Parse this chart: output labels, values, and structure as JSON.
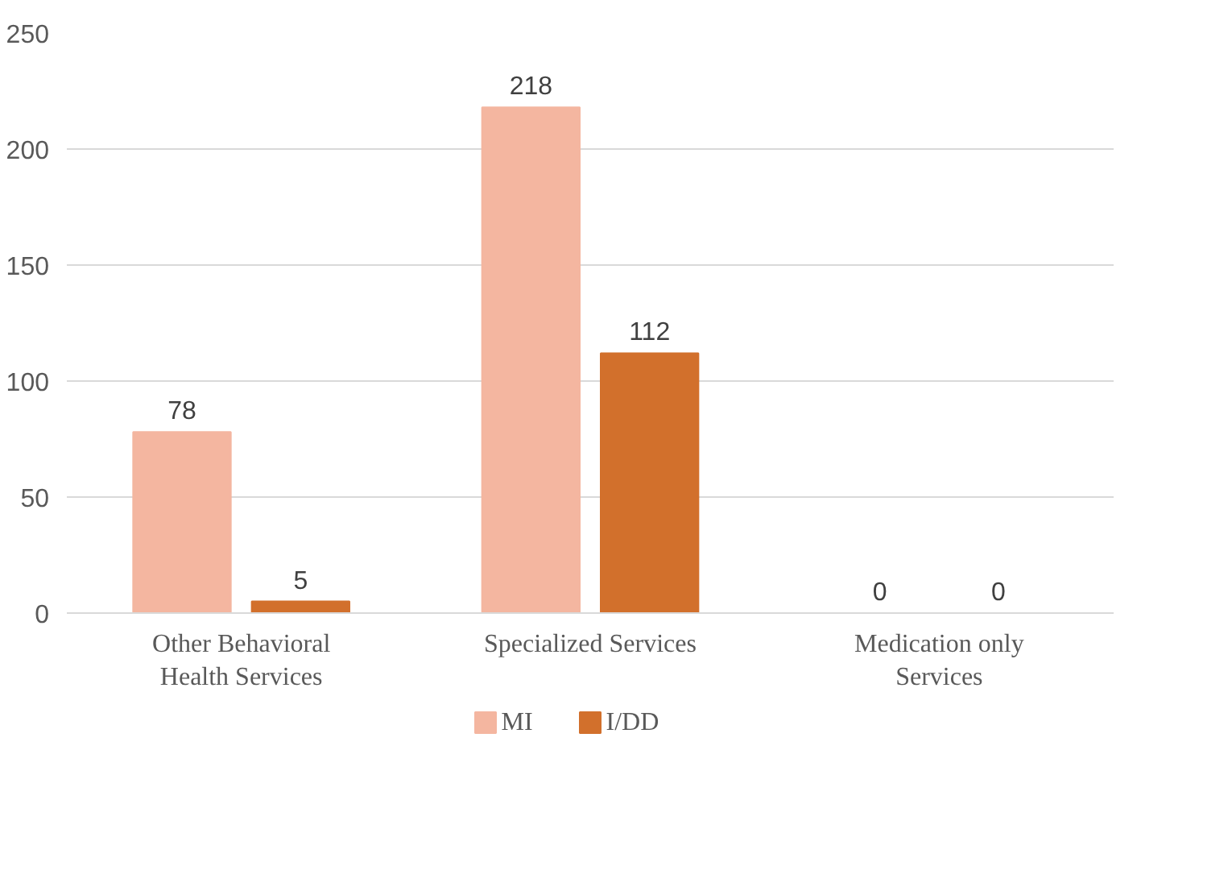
{
  "chart_data": {
    "type": "bar",
    "categories": [
      "Other Behavioral Health Services",
      "Specialized Services",
      "Medication only Services"
    ],
    "series": [
      {
        "name": "MI",
        "color": "#f4b6a0",
        "values": [
          78,
          218,
          0
        ]
      },
      {
        "name": "I/DD",
        "color": "#d2702c",
        "values": [
          5,
          112,
          0
        ]
      }
    ],
    "ylim": [
      0,
      250
    ],
    "yticks": [
      0,
      50,
      100,
      150,
      200,
      250
    ],
    "grid": "y",
    "legend": "bottom",
    "data_labels": true
  }
}
